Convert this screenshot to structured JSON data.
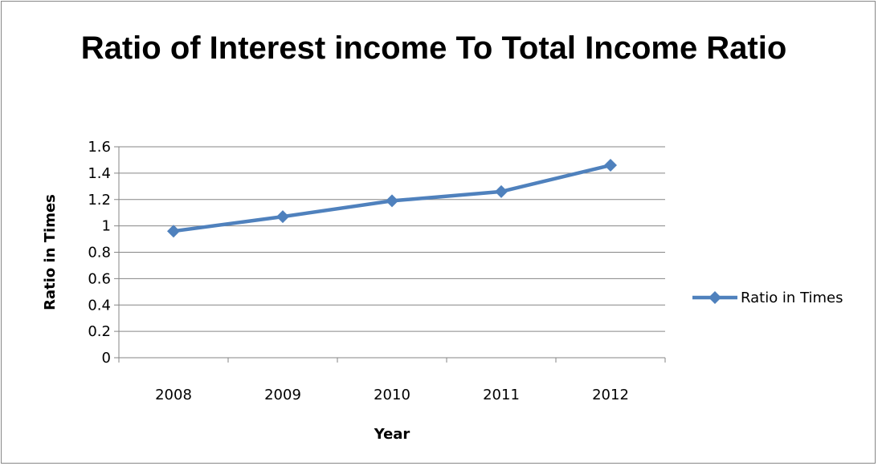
{
  "chart_data": {
    "type": "line",
    "title": "Ratio of Interest income To Total Income Ratio",
    "xlabel": "Year",
    "ylabel": "Ratio in Times",
    "categories": [
      "2008",
      "2009",
      "2010",
      "2011",
      "2012"
    ],
    "series": [
      {
        "name": "Ratio in Times",
        "values": [
          0.96,
          1.07,
          1.19,
          1.26,
          1.46
        ]
      }
    ],
    "ylim": [
      0,
      1.6
    ],
    "yticks": [
      "0",
      "0.2",
      "0.4",
      "0.6",
      "0.8",
      "1",
      "1.2",
      "1.4",
      "1.6"
    ],
    "grid": true,
    "legend_position": "right",
    "colors": {
      "series": "#4F81BD",
      "grid": "#868686",
      "axis": "#868686"
    }
  }
}
